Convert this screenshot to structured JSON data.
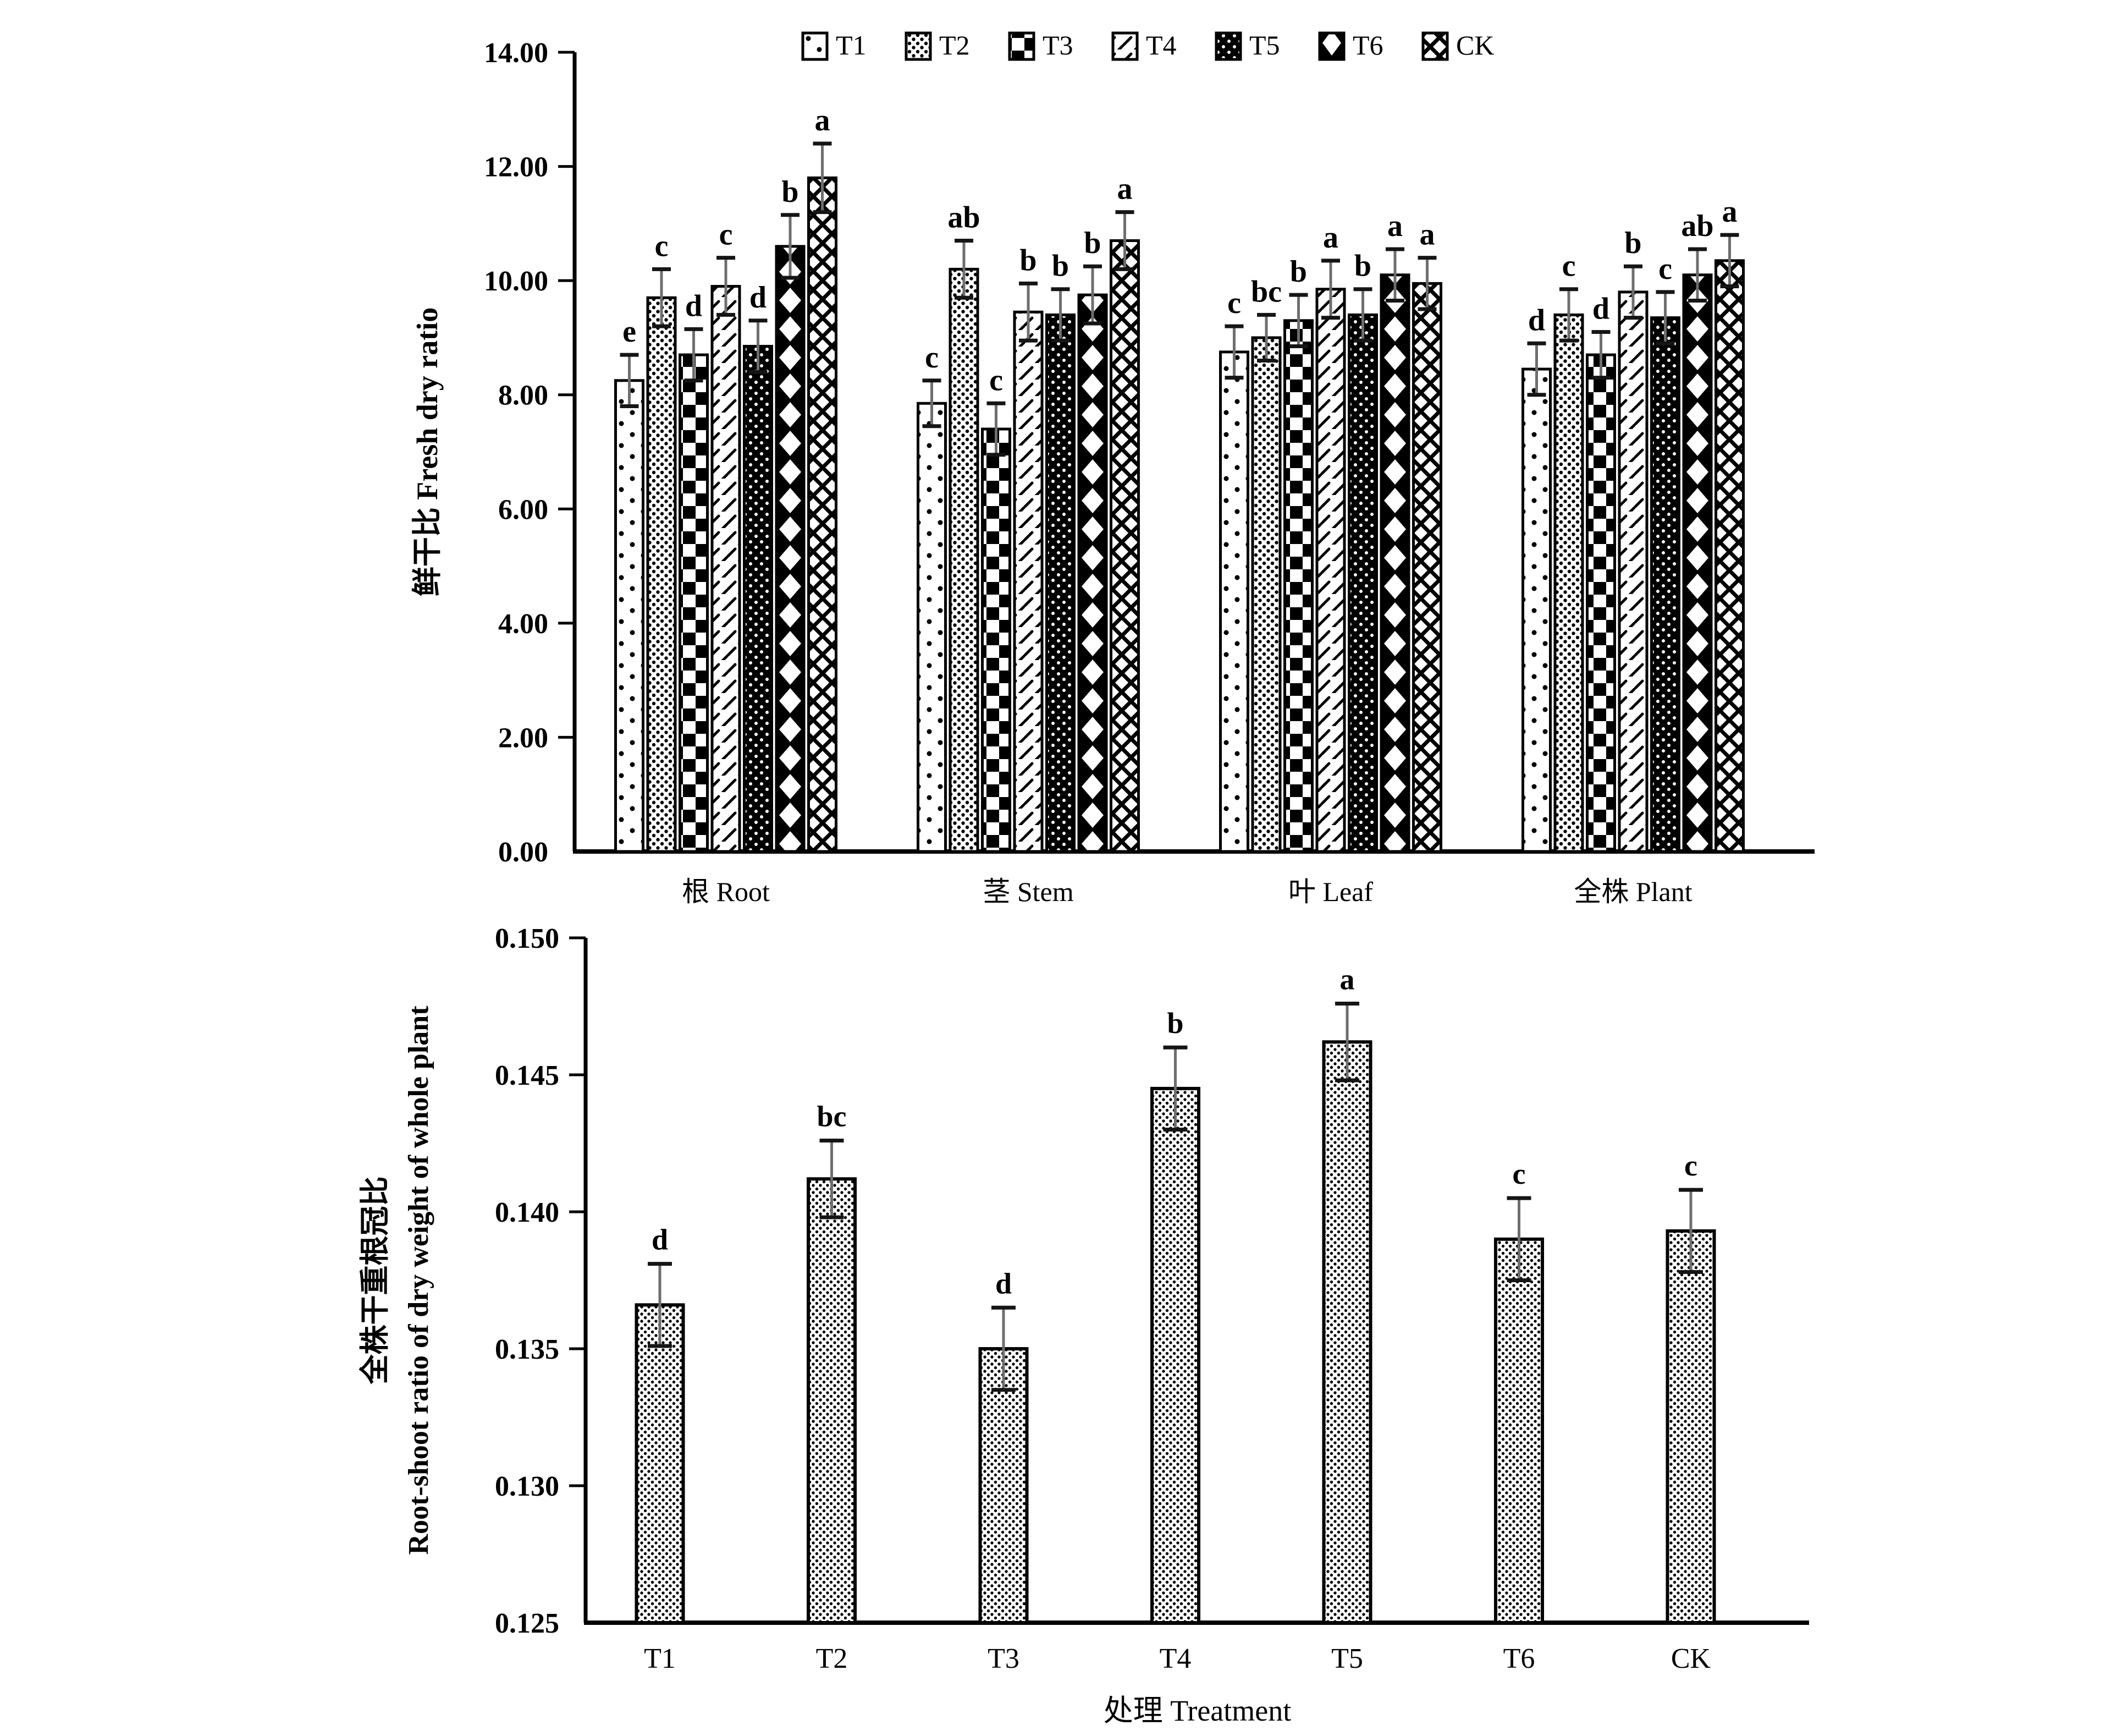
{
  "colors": {
    "background": "#ffffff",
    "bar_outline": "#000000",
    "error_bar_line": "#6e6e6e",
    "error_bar_cap": "#151515",
    "text": "#000000"
  },
  "legend": {
    "items": [
      {
        "label": "T1",
        "pattern": "sparse-dots"
      },
      {
        "label": "T2",
        "pattern": "dense-dots"
      },
      {
        "label": "T3",
        "pattern": "checker"
      },
      {
        "label": "T4",
        "pattern": "diag-dash"
      },
      {
        "label": "T5",
        "pattern": "dark-dots"
      },
      {
        "label": "T6",
        "pattern": "diamond-col"
      },
      {
        "label": "CK",
        "pattern": "lattice"
      }
    ]
  },
  "chart_data": [
    {
      "type": "bar",
      "title": "",
      "ylabel": "鲜干比 Fresh dry ratio",
      "ylim": [
        0,
        14
      ],
      "ytick_step": 2,
      "ytick_decimals": 2,
      "grid": false,
      "legend_position": "top",
      "categories": [
        "根 Root",
        "茎 Stem",
        "叶 Leaf",
        "全株 Plant"
      ],
      "series": [
        {
          "name": "T1",
          "pattern": "sparse-dots",
          "values": [
            8.25,
            7.85,
            8.75,
            8.45
          ],
          "errors": [
            0.45,
            0.4,
            0.45,
            0.45
          ],
          "letters": [
            "e",
            "c",
            "c",
            "d"
          ]
        },
        {
          "name": "T2",
          "pattern": "dense-dots",
          "values": [
            9.7,
            10.2,
            9.0,
            9.4
          ],
          "errors": [
            0.5,
            0.5,
            0.4,
            0.45
          ],
          "letters": [
            "c",
            "ab",
            "bc",
            "c"
          ]
        },
        {
          "name": "T3",
          "pattern": "checker",
          "values": [
            8.7,
            7.4,
            9.3,
            8.7
          ],
          "errors": [
            0.45,
            0.45,
            0.45,
            0.4
          ],
          "letters": [
            "d",
            "c",
            "b",
            "d"
          ]
        },
        {
          "name": "T4",
          "pattern": "diag-dash",
          "values": [
            9.9,
            9.45,
            9.85,
            9.8
          ],
          "errors": [
            0.5,
            0.5,
            0.5,
            0.45
          ],
          "letters": [
            "c",
            "b",
            "a",
            "b"
          ]
        },
        {
          "name": "T5",
          "pattern": "dark-dots",
          "values": [
            8.85,
            9.4,
            9.4,
            9.35
          ],
          "errors": [
            0.45,
            0.45,
            0.45,
            0.45
          ],
          "letters": [
            "d",
            "b",
            "b",
            "c"
          ]
        },
        {
          "name": "T6",
          "pattern": "diamond-col",
          "values": [
            10.6,
            9.75,
            10.1,
            10.1
          ],
          "errors": [
            0.55,
            0.5,
            0.45,
            0.45
          ],
          "letters": [
            "b",
            "b",
            "a",
            "ab"
          ]
        },
        {
          "name": "CK",
          "pattern": "lattice",
          "values": [
            11.8,
            10.7,
            9.95,
            10.35
          ],
          "errors": [
            0.6,
            0.5,
            0.45,
            0.45
          ],
          "letters": [
            "a",
            "a",
            "a",
            "a"
          ]
        }
      ]
    },
    {
      "type": "bar",
      "title": "",
      "xlabel": "处理 Treatment",
      "ylabel_lines": [
        "全株干重根冠比",
        "Root-shoot ratio of dry weight of whole plant"
      ],
      "ylim": [
        0.125,
        0.15
      ],
      "ytick_step": 0.005,
      "ytick_decimals": 3,
      "grid": false,
      "pattern": "fine-dots",
      "categories": [
        "T1",
        "T2",
        "T3",
        "T4",
        "T5",
        "T6",
        "CK"
      ],
      "values": [
        0.1366,
        0.1412,
        0.135,
        0.1445,
        0.1462,
        0.139,
        0.1393
      ],
      "errors": [
        0.0015,
        0.0014,
        0.0015,
        0.0015,
        0.0014,
        0.0015,
        0.0015
      ],
      "letters": [
        "d",
        "bc",
        "d",
        "b",
        "a",
        "c",
        "c"
      ]
    }
  ]
}
